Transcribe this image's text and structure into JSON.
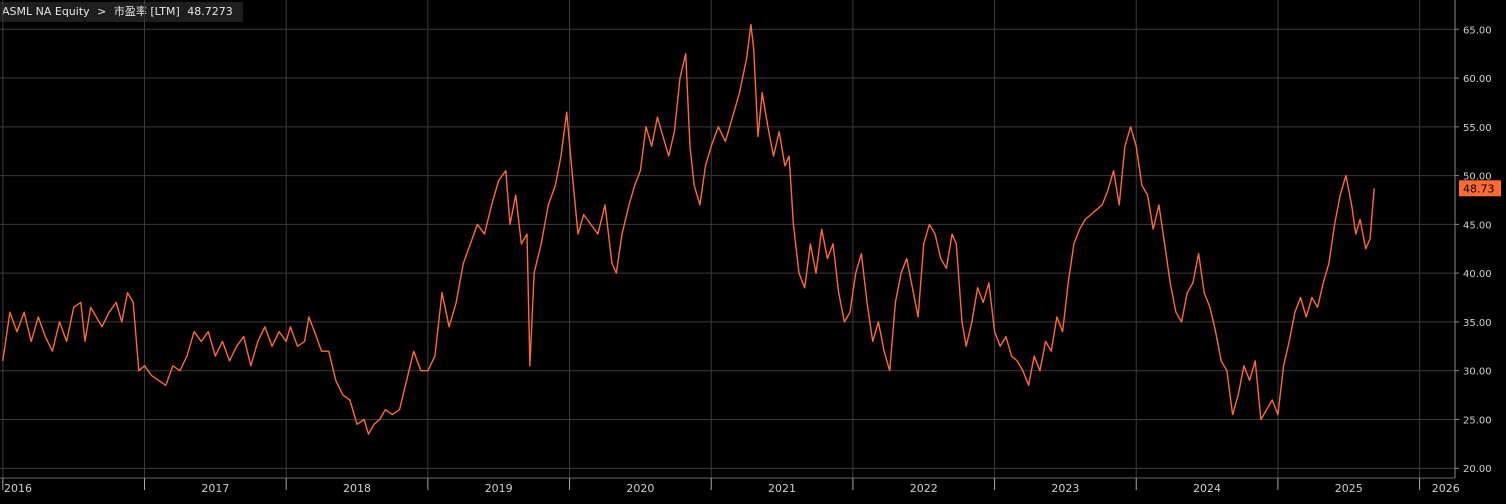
{
  "header": {
    "ticker": "ASML NA Equity",
    "separator": ">",
    "field": "市盈率 [LTM]",
    "last_value": "48.7273"
  },
  "colors": {
    "background": "#000000",
    "grid": "#3a3a3a",
    "series": "#ff6a33",
    "last_label_bg": "#ff6a33",
    "axis_text": "#cfcfcf"
  },
  "chart_data": {
    "type": "line",
    "title": "",
    "xlabel": "",
    "ylabel": "",
    "x_range": [
      2015.98,
      2026.25
    ],
    "ylim": [
      19,
      68
    ],
    "y_ticks": [
      20,
      25,
      30,
      35,
      40,
      45,
      50,
      55,
      60,
      65
    ],
    "y_tick_labels": [
      "20.00",
      "25.00",
      "30.00",
      "35.00",
      "40.00",
      "45.00",
      "50.00",
      "55.00",
      "60.00",
      "65.00"
    ],
    "x_tick_labels": [
      "2016",
      "2017",
      "2018",
      "2019",
      "2020",
      "2021",
      "2022",
      "2023",
      "2024",
      "2025",
      "2026"
    ],
    "grid": true,
    "last_value_label": "48.73",
    "series": [
      {
        "color": "#ff6a33",
        "points": [
          [
            2016.0,
            31.0
          ],
          [
            2016.05,
            36.0
          ],
          [
            2016.1,
            34.0
          ],
          [
            2016.15,
            36.0
          ],
          [
            2016.2,
            33.0
          ],
          [
            2016.25,
            35.5
          ],
          [
            2016.3,
            33.5
          ],
          [
            2016.35,
            32.0
          ],
          [
            2016.4,
            35.0
          ],
          [
            2016.45,
            33.0
          ],
          [
            2016.5,
            36.5
          ],
          [
            2016.55,
            37.0
          ],
          [
            2016.58,
            33.0
          ],
          [
            2016.62,
            36.5
          ],
          [
            2016.66,
            35.5
          ],
          [
            2016.7,
            34.5
          ],
          [
            2016.75,
            36.0
          ],
          [
            2016.8,
            37.0
          ],
          [
            2016.84,
            35.0
          ],
          [
            2016.88,
            38.0
          ],
          [
            2016.92,
            37.0
          ],
          [
            2016.96,
            30.0
          ],
          [
            2017.0,
            30.5
          ],
          [
            2017.05,
            29.5
          ],
          [
            2017.1,
            29.0
          ],
          [
            2017.15,
            28.5
          ],
          [
            2017.2,
            30.5
          ],
          [
            2017.25,
            30.0
          ],
          [
            2017.3,
            31.5
          ],
          [
            2017.35,
            34.0
          ],
          [
            2017.4,
            33.0
          ],
          [
            2017.45,
            34.0
          ],
          [
            2017.5,
            31.5
          ],
          [
            2017.55,
            33.0
          ],
          [
            2017.6,
            31.0
          ],
          [
            2017.65,
            32.5
          ],
          [
            2017.7,
            33.5
          ],
          [
            2017.75,
            30.5
          ],
          [
            2017.8,
            33.0
          ],
          [
            2017.85,
            34.5
          ],
          [
            2017.9,
            32.5
          ],
          [
            2017.95,
            34.0
          ],
          [
            2018.0,
            33.0
          ],
          [
            2018.03,
            34.5
          ],
          [
            2018.08,
            32.5
          ],
          [
            2018.13,
            33.0
          ],
          [
            2018.16,
            35.5
          ],
          [
            2018.2,
            34.0
          ],
          [
            2018.25,
            32.0
          ],
          [
            2018.3,
            32.0
          ],
          [
            2018.35,
            29.0
          ],
          [
            2018.4,
            27.5
          ],
          [
            2018.45,
            27.0
          ],
          [
            2018.5,
            24.5
          ],
          [
            2018.55,
            25.0
          ],
          [
            2018.58,
            23.5
          ],
          [
            2018.62,
            24.5
          ],
          [
            2018.66,
            25.0
          ],
          [
            2018.7,
            26.0
          ],
          [
            2018.75,
            25.5
          ],
          [
            2018.8,
            26.0
          ],
          [
            2018.85,
            29.0
          ],
          [
            2018.9,
            32.0
          ],
          [
            2018.95,
            30.0
          ],
          [
            2019.0,
            30.0
          ],
          [
            2019.05,
            31.5
          ],
          [
            2019.1,
            38.0
          ],
          [
            2019.15,
            34.5
          ],
          [
            2019.2,
            37.0
          ],
          [
            2019.25,
            41.0
          ],
          [
            2019.3,
            43.0
          ],
          [
            2019.35,
            45.0
          ],
          [
            2019.4,
            44.0
          ],
          [
            2019.45,
            47.0
          ],
          [
            2019.5,
            49.5
          ],
          [
            2019.55,
            50.5
          ],
          [
            2019.58,
            45.0
          ],
          [
            2019.62,
            48.0
          ],
          [
            2019.66,
            43.0
          ],
          [
            2019.7,
            44.0
          ],
          [
            2019.72,
            30.5
          ],
          [
            2019.75,
            40.0
          ],
          [
            2019.8,
            43.0
          ],
          [
            2019.85,
            47.0
          ],
          [
            2019.9,
            49.0
          ],
          [
            2019.94,
            52.0
          ],
          [
            2019.98,
            56.5
          ],
          [
            2020.02,
            50.0
          ],
          [
            2020.06,
            44.0
          ],
          [
            2020.1,
            46.0
          ],
          [
            2020.15,
            45.0
          ],
          [
            2020.2,
            44.0
          ],
          [
            2020.25,
            47.0
          ],
          [
            2020.3,
            41.0
          ],
          [
            2020.33,
            40.0
          ],
          [
            2020.37,
            44.0
          ],
          [
            2020.42,
            47.0
          ],
          [
            2020.46,
            49.0
          ],
          [
            2020.5,
            50.5
          ],
          [
            2020.54,
            55.0
          ],
          [
            2020.58,
            53.0
          ],
          [
            2020.62,
            56.0
          ],
          [
            2020.66,
            54.0
          ],
          [
            2020.7,
            52.0
          ],
          [
            2020.74,
            54.5
          ],
          [
            2020.78,
            60.0
          ],
          [
            2020.82,
            62.5
          ],
          [
            2020.85,
            53.0
          ],
          [
            2020.88,
            49.0
          ],
          [
            2020.92,
            47.0
          ],
          [
            2020.96,
            51.0
          ],
          [
            2021.0,
            53.0
          ],
          [
            2021.05,
            55.0
          ],
          [
            2021.1,
            53.5
          ],
          [
            2021.15,
            56.0
          ],
          [
            2021.2,
            58.5
          ],
          [
            2021.25,
            62.0
          ],
          [
            2021.28,
            65.5
          ],
          [
            2021.3,
            63.0
          ],
          [
            2021.33,
            54.0
          ],
          [
            2021.36,
            58.5
          ],
          [
            2021.4,
            55.0
          ],
          [
            2021.44,
            52.0
          ],
          [
            2021.48,
            54.5
          ],
          [
            2021.52,
            51.0
          ],
          [
            2021.55,
            52.0
          ],
          [
            2021.58,
            45.0
          ],
          [
            2021.62,
            40.0
          ],
          [
            2021.66,
            38.5
          ],
          [
            2021.7,
            43.0
          ],
          [
            2021.74,
            40.0
          ],
          [
            2021.78,
            44.5
          ],
          [
            2021.82,
            41.5
          ],
          [
            2021.86,
            43.0
          ],
          [
            2021.9,
            38.0
          ],
          [
            2021.94,
            35.0
          ],
          [
            2021.98,
            36.0
          ],
          [
            2022.02,
            40.0
          ],
          [
            2022.06,
            42.0
          ],
          [
            2022.1,
            37.0
          ],
          [
            2022.14,
            33.0
          ],
          [
            2022.18,
            35.0
          ],
          [
            2022.22,
            32.0
          ],
          [
            2022.26,
            30.0
          ],
          [
            2022.3,
            37.0
          ],
          [
            2022.34,
            40.0
          ],
          [
            2022.38,
            41.5
          ],
          [
            2022.42,
            38.5
          ],
          [
            2022.46,
            35.5
          ],
          [
            2022.5,
            43.0
          ],
          [
            2022.54,
            45.0
          ],
          [
            2022.58,
            44.0
          ],
          [
            2022.62,
            41.5
          ],
          [
            2022.66,
            40.5
          ],
          [
            2022.7,
            44.0
          ],
          [
            2022.73,
            43.0
          ],
          [
            2022.77,
            35.0
          ],
          [
            2022.8,
            32.5
          ],
          [
            2022.84,
            35.0
          ],
          [
            2022.88,
            38.5
          ],
          [
            2022.92,
            37.0
          ],
          [
            2022.96,
            39.0
          ],
          [
            2023.0,
            34.0
          ],
          [
            2023.04,
            32.5
          ],
          [
            2023.08,
            33.5
          ],
          [
            2023.12,
            31.5
          ],
          [
            2023.16,
            31.0
          ],
          [
            2023.2,
            30.0
          ],
          [
            2023.24,
            28.5
          ],
          [
            2023.28,
            31.5
          ],
          [
            2023.32,
            30.0
          ],
          [
            2023.36,
            33.0
          ],
          [
            2023.4,
            32.0
          ],
          [
            2023.44,
            35.5
          ],
          [
            2023.48,
            34.0
          ],
          [
            2023.52,
            39.0
          ],
          [
            2023.56,
            43.0
          ],
          [
            2023.6,
            44.5
          ],
          [
            2023.64,
            45.5
          ],
          [
            2023.68,
            46.0
          ],
          [
            2023.72,
            46.5
          ],
          [
            2023.76,
            47.0
          ],
          [
            2023.8,
            48.5
          ],
          [
            2023.84,
            50.5
          ],
          [
            2023.88,
            47.0
          ],
          [
            2023.92,
            53.0
          ],
          [
            2023.96,
            55.0
          ],
          [
            2024.0,
            53.0
          ],
          [
            2024.04,
            49.0
          ],
          [
            2024.08,
            48.0
          ],
          [
            2024.12,
            44.5
          ],
          [
            2024.16,
            47.0
          ],
          [
            2024.2,
            43.0
          ],
          [
            2024.24,
            39.0
          ],
          [
            2024.28,
            36.0
          ],
          [
            2024.32,
            35.0
          ],
          [
            2024.36,
            38.0
          ],
          [
            2024.4,
            39.0
          ],
          [
            2024.44,
            42.0
          ],
          [
            2024.48,
            38.0
          ],
          [
            2024.52,
            36.5
          ],
          [
            2024.56,
            34.0
          ],
          [
            2024.6,
            31.0
          ],
          [
            2024.64,
            30.0
          ],
          [
            2024.68,
            25.5
          ],
          [
            2024.72,
            27.5
          ],
          [
            2024.76,
            30.5
          ],
          [
            2024.8,
            29.0
          ],
          [
            2024.84,
            31.0
          ],
          [
            2024.88,
            25.0
          ],
          [
            2024.92,
            26.0
          ],
          [
            2024.96,
            27.0
          ],
          [
            2025.0,
            25.5
          ],
          [
            2025.04,
            30.5
          ],
          [
            2025.08,
            33.0
          ],
          [
            2025.12,
            36.0
          ],
          [
            2025.16,
            37.5
          ],
          [
            2025.2,
            35.5
          ],
          [
            2025.24,
            37.5
          ],
          [
            2025.28,
            36.5
          ],
          [
            2025.32,
            39.0
          ],
          [
            2025.36,
            41.0
          ],
          [
            2025.4,
            45.0
          ],
          [
            2025.44,
            48.0
          ],
          [
            2025.48,
            50.0
          ],
          [
            2025.52,
            47.0
          ],
          [
            2025.55,
            44.0
          ],
          [
            2025.58,
            45.5
          ],
          [
            2025.62,
            42.5
          ],
          [
            2025.65,
            43.5
          ],
          [
            2025.68,
            48.7
          ]
        ]
      }
    ]
  }
}
